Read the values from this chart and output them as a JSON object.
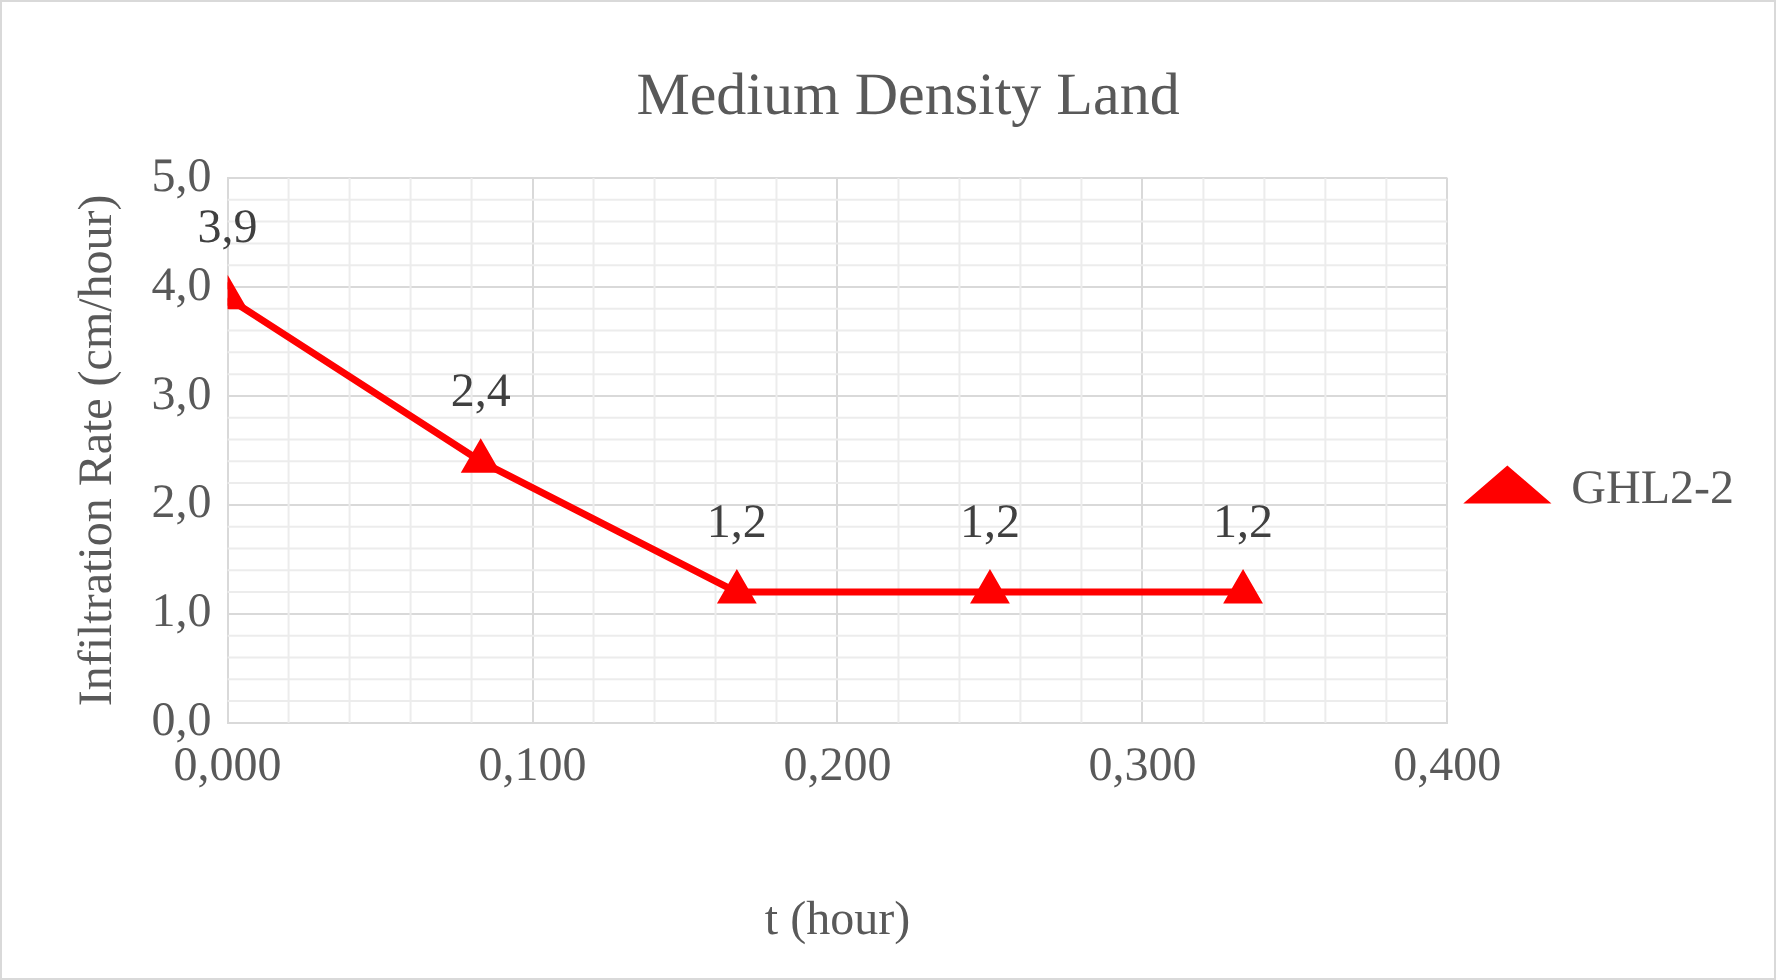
{
  "chart_data": {
    "type": "line",
    "title": "Medium Density Land",
    "xlabel": "t (hour)",
    "ylabel": "Infiltration Rate (cm/hour)",
    "x": [
      0,
      0.083,
      0.167,
      0.25,
      0.333
    ],
    "series": [
      {
        "name": "GHL2-2",
        "color": "#ff0000",
        "values": [
          3.9,
          2.4,
          1.2,
          1.2,
          1.2
        ],
        "value_labels": [
          "3,9",
          "2,4",
          "1,2",
          "1,2",
          "1,2"
        ]
      }
    ],
    "xlim": [
      0,
      0.4
    ],
    "xticks": [
      {
        "value": 0,
        "label": "0,000"
      },
      {
        "value": 0.1,
        "label": "0,100"
      },
      {
        "value": 0.2,
        "label": "0,200"
      },
      {
        "value": 0.3,
        "label": "0,300"
      },
      {
        "value": 0.4,
        "label": "0,400"
      }
    ],
    "ylim": [
      0,
      5
    ],
    "yticks": [
      {
        "value": 0,
        "label": "0,0"
      },
      {
        "value": 1,
        "label": "1,0"
      },
      {
        "value": 2,
        "label": "2,0"
      },
      {
        "value": 3,
        "label": "3,0"
      },
      {
        "value": 4,
        "label": "4,0"
      },
      {
        "value": 5,
        "label": "5,0"
      }
    ],
    "grid": true,
    "legend": "right",
    "marker": "triangle",
    "line_style": "solid"
  }
}
